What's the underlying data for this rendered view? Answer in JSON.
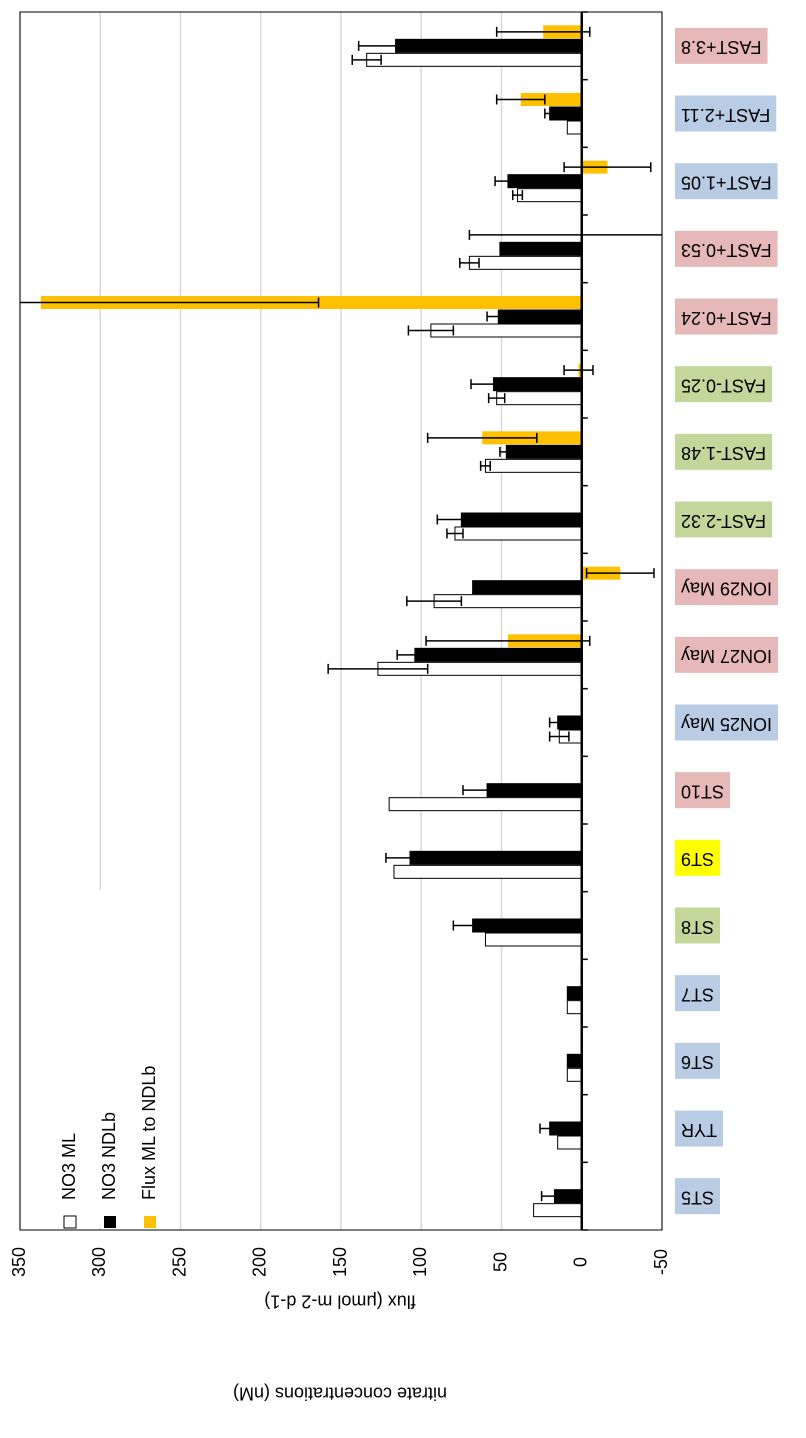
{
  "chart_data": {
    "type": "bar",
    "y_axis_title": "flux (μmol m-2 d-1)",
    "y_axis_title2": "nitrate concentrations (nM)",
    "categories": [
      "ST5",
      "TYR",
      "ST6",
      "ST7",
      "ST8",
      "ST9",
      "ST10",
      "ION25 May",
      "ION27 May",
      "ION29 May",
      "FAST-2.32",
      "FAST-1.48",
      "FAST-0.25",
      "FAST+0.24",
      "FAST+0.53",
      "FAST+1.05",
      "FAST+2.11",
      "FAST+3.8"
    ],
    "label_colors": [
      "#b8cce4",
      "#b8cce4",
      "#b8cce4",
      "#b8cce4",
      "#c4d79b",
      "#ffff00",
      "#e6b8b7",
      "#b8cce4",
      "#e6b8b7",
      "#e6b8b7",
      "#c4d79b",
      "#c4d79b",
      "#c4d79b",
      "#e6b8b7",
      "#e6b8b7",
      "#b8cce4",
      "#b8cce4",
      "#e6b8b7"
    ],
    "series": [
      {
        "name": "NO3 ML",
        "color": "#ffffff",
        "values": [
          30,
          15,
          9,
          9,
          60,
          117,
          120,
          14,
          127,
          92,
          79,
          60,
          53,
          94,
          70,
          40,
          9,
          134
        ],
        "errors": [
          null,
          null,
          null,
          null,
          null,
          null,
          null,
          6,
          31,
          17,
          5,
          3,
          5,
          14,
          6,
          3,
          null,
          9
        ]
      },
      {
        "name": "NO3 NDLb",
        "color": "#000000",
        "values": [
          17,
          20,
          9,
          9,
          68,
          107,
          59,
          15,
          104,
          68,
          75,
          47,
          55,
          52,
          51,
          46,
          20,
          116
        ],
        "errors": [
          8,
          6,
          null,
          null,
          12,
          15,
          15,
          5,
          11,
          null,
          15,
          4,
          14,
          7,
          null,
          8,
          3,
          23
        ]
      },
      {
        "name": "Flux ML to NDLb",
        "color": "#ffc000",
        "values": [
          null,
          null,
          null,
          null,
          null,
          null,
          null,
          null,
          46,
          -24,
          null,
          62,
          2,
          337,
          0,
          -16,
          38,
          24
        ],
        "errors": [
          null,
          null,
          null,
          null,
          null,
          null,
          null,
          null,
          51,
          21,
          null,
          34,
          9,
          173,
          70,
          27,
          15,
          29
        ]
      }
    ],
    "ylim": [
      -50,
      350
    ],
    "yticks": [
      -50,
      0,
      50,
      100,
      150,
      200,
      250,
      300,
      350
    ],
    "grid": true,
    "legend": "bottom-left"
  }
}
